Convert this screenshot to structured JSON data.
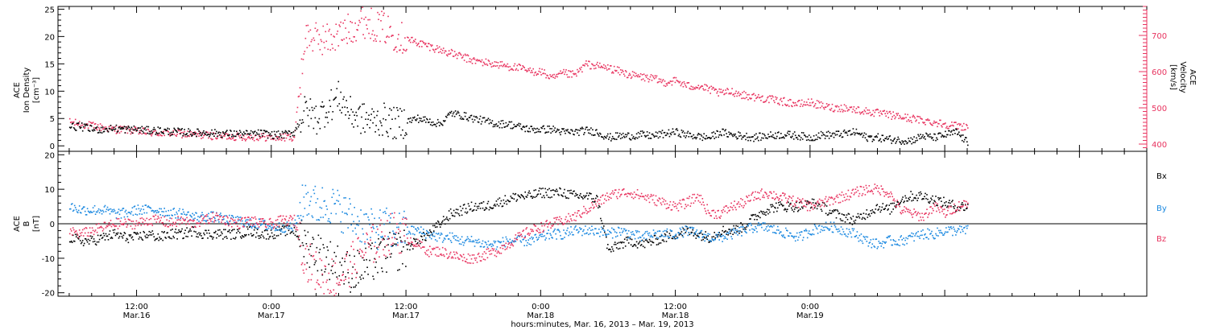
{
  "chart_data": [
    {
      "type": "scatter",
      "panel": "ion-density-velocity",
      "ylabel_left": [
        "ACE",
        "Ion Density",
        "[cm⁻³]"
      ],
      "ylabel_right": [
        "ACE",
        "Velocity",
        "[km/s]"
      ],
      "ylim_left": [
        -1,
        25.5
      ],
      "yticks_left": [
        0,
        5,
        10,
        15,
        20,
        25
      ],
      "ylim_right": [
        380,
        780
      ],
      "yticks_right": [
        400,
        500,
        600,
        700
      ],
      "colors": {
        "density": "#000000",
        "velocity": "#e8335f"
      },
      "series": [
        {
          "key": "density",
          "axis": "left",
          "color": "#000000",
          "x": [
            0,
            1,
            2,
            3,
            4,
            5,
            6,
            7,
            8,
            9,
            10,
            11,
            12,
            13,
            14,
            15,
            16,
            17,
            18,
            19,
            20,
            21,
            22,
            23,
            24,
            25,
            26,
            27,
            28,
            29,
            30,
            31,
            32,
            33,
            34,
            35,
            36,
            37,
            38,
            39,
            40,
            41,
            42,
            43,
            44,
            45,
            46,
            47,
            48,
            49,
            50,
            51,
            52,
            53,
            54,
            55,
            56,
            57,
            58,
            59,
            60,
            61,
            62,
            63,
            64,
            65,
            66,
            67,
            68,
            69,
            70,
            71,
            72,
            73,
            74,
            75,
            76,
            77,
            78,
            79,
            80
          ],
          "y": [
            3.5,
            3.5,
            3.0,
            3.0,
            3.2,
            3.0,
            3.0,
            2.8,
            2.8,
            2.6,
            2.5,
            2.4,
            2.4,
            2.3,
            2.2,
            2.2,
            2.1,
            2.3,
            2.0,
            2.0,
            2.5,
            6.5,
            5.0,
            7.0,
            9.0,
            6.0,
            5.0,
            4.5,
            4.8,
            4.0,
            4.5,
            5.0,
            4.5,
            4.0,
            6.0,
            5.5,
            5.0,
            4.5,
            4.0,
            4.0,
            3.5,
            3.0,
            3.0,
            3.0,
            2.5,
            2.5,
            2.8,
            2.5,
            1.5,
            1.8,
            1.8,
            2.0,
            1.8,
            2.2,
            2.5,
            2.0,
            1.7,
            1.5,
            2.5,
            2.0,
            1.8,
            1.5,
            1.8,
            2.0,
            2.0,
            1.8,
            1.5,
            2.0,
            2.0,
            2.2,
            2.5,
            1.5,
            1.5,
            1.2,
            1.0,
            1.0,
            1.8,
            1.5,
            2.0,
            2.5,
            0.5
          ]
        },
        {
          "key": "velocity",
          "axis": "right",
          "color": "#e8335f",
          "x": [
            0,
            1,
            2,
            3,
            4,
            5,
            6,
            7,
            8,
            9,
            10,
            11,
            12,
            13,
            14,
            15,
            16,
            17,
            18,
            19,
            20,
            21,
            22,
            23,
            24,
            25,
            26,
            27,
            28,
            29,
            30,
            31,
            32,
            33,
            34,
            35,
            36,
            37,
            38,
            39,
            40,
            41,
            42,
            43,
            44,
            45,
            46,
            47,
            48,
            49,
            50,
            51,
            52,
            53,
            54,
            55,
            56,
            57,
            58,
            59,
            60,
            61,
            62,
            63,
            64,
            65,
            66,
            67,
            68,
            69,
            70,
            71,
            72,
            73,
            74,
            75,
            76,
            77,
            78,
            79,
            80
          ],
          "y": [
            460,
            455,
            450,
            445,
            440,
            440,
            435,
            432,
            430,
            430,
            428,
            425,
            425,
            422,
            422,
            420,
            420,
            420,
            418,
            418,
            420,
            700,
            690,
            690,
            700,
            720,
            740,
            730,
            720,
            700,
            690,
            680,
            670,
            660,
            650,
            640,
            630,
            625,
            620,
            615,
            610,
            600,
            600,
            580,
            595,
            590,
            620,
            615,
            610,
            600,
            590,
            585,
            580,
            570,
            575,
            560,
            560,
            550,
            540,
            545,
            535,
            530,
            525,
            520,
            515,
            510,
            515,
            505,
            500,
            500,
            495,
            490,
            485,
            480,
            475,
            470,
            465,
            460,
            455,
            450,
            448
          ]
        }
      ]
    },
    {
      "type": "scatter",
      "panel": "magnetic-field",
      "ylabel": [
        "ACE",
        "B",
        "[nT]"
      ],
      "ylim": [
        -21,
        21
      ],
      "yticks": [
        -20,
        -10,
        0,
        10,
        20
      ],
      "zero_line": true,
      "legend": [
        "Bx",
        "By",
        "Bz"
      ],
      "colors": {
        "Bx": "#000000",
        "By": "#1a88e0",
        "Bz": "#e8335f"
      },
      "series": [
        {
          "key": "Bx",
          "color": "#000000",
          "x": [
            0,
            1,
            2,
            3,
            4,
            5,
            6,
            7,
            8,
            9,
            10,
            11,
            12,
            13,
            14,
            15,
            16,
            17,
            18,
            19,
            20,
            21,
            22,
            23,
            24,
            25,
            26,
            27,
            28,
            29,
            30,
            31,
            32,
            33,
            34,
            35,
            36,
            37,
            38,
            39,
            40,
            41,
            42,
            43,
            44,
            45,
            46,
            47,
            48,
            49,
            50,
            51,
            52,
            53,
            54,
            55,
            56,
            57,
            58,
            59,
            60,
            61,
            62,
            63,
            64,
            65,
            66,
            67,
            68,
            69,
            70,
            71,
            72,
            73,
            74,
            75,
            76,
            77,
            78,
            79,
            80
          ],
          "y": [
            -4,
            -5,
            -5,
            -4,
            -3,
            -4,
            -4,
            -3,
            -4,
            -3,
            -3,
            -2,
            -3,
            -3,
            -3,
            -3,
            -2,
            -3,
            -3,
            -2,
            -2,
            -6,
            -8,
            -10,
            -12,
            -14,
            -13,
            -11,
            -9,
            -8,
            -7,
            -5,
            -3,
            0,
            3,
            4,
            5,
            5,
            6,
            7,
            8,
            8,
            9,
            9,
            9,
            8,
            8,
            7,
            -8,
            -6,
            -5,
            -6,
            -5,
            -4,
            -3,
            -2,
            -3,
            -4,
            -2,
            -2,
            -1,
            2,
            4,
            5,
            5,
            5,
            6,
            5,
            3,
            2,
            1,
            3,
            5,
            4,
            7,
            8,
            8,
            7,
            6,
            5,
            5
          ]
        },
        {
          "key": "By",
          "color": "#1a88e0",
          "x": [
            0,
            1,
            2,
            3,
            4,
            5,
            6,
            7,
            8,
            9,
            10,
            11,
            12,
            13,
            14,
            15,
            16,
            17,
            18,
            19,
            20,
            21,
            22,
            23,
            24,
            25,
            26,
            27,
            28,
            29,
            30,
            31,
            32,
            33,
            34,
            35,
            36,
            37,
            38,
            39,
            40,
            41,
            42,
            43,
            44,
            45,
            46,
            47,
            48,
            49,
            50,
            51,
            52,
            53,
            54,
            55,
            56,
            57,
            58,
            59,
            60,
            61,
            62,
            63,
            64,
            65,
            66,
            67,
            68,
            69,
            70,
            71,
            72,
            73,
            74,
            75,
            76,
            77,
            78,
            79,
            80
          ],
          "y": [
            5,
            4,
            4,
            4,
            3,
            3,
            4,
            4,
            4,
            3,
            3,
            2,
            2,
            2,
            1,
            1,
            0,
            0,
            -1,
            -1,
            -1,
            8,
            5,
            6,
            4,
            2,
            0,
            -2,
            -1,
            -2,
            -2,
            -2,
            -3,
            -4,
            -4,
            -5,
            -5,
            -6,
            -6,
            -5,
            -5,
            -5,
            -4,
            -3,
            -3,
            -2,
            -2,
            -2,
            -3,
            -2,
            -3,
            -4,
            -3,
            -3,
            -3,
            -2,
            -3,
            -4,
            -4,
            -3,
            -2,
            -1,
            -1,
            -2,
            -3,
            -4,
            -2,
            -1,
            -1,
            -2,
            -3,
            -5,
            -6,
            -5,
            -5,
            -4,
            -3,
            -3,
            -2,
            -2,
            -2
          ]
        },
        {
          "key": "Bz",
          "color": "#e8335f",
          "x": [
            0,
            1,
            2,
            3,
            4,
            5,
            6,
            7,
            8,
            9,
            10,
            11,
            12,
            13,
            14,
            15,
            16,
            17,
            18,
            19,
            20,
            21,
            22,
            23,
            24,
            25,
            26,
            27,
            28,
            29,
            30,
            31,
            32,
            33,
            34,
            35,
            36,
            37,
            38,
            39,
            40,
            41,
            42,
            43,
            44,
            45,
            46,
            47,
            48,
            49,
            50,
            51,
            52,
            53,
            54,
            55,
            56,
            57,
            58,
            59,
            60,
            61,
            62,
            63,
            64,
            65,
            66,
            67,
            68,
            69,
            70,
            71,
            72,
            73,
            74,
            75,
            76,
            77,
            78,
            79,
            80
          ],
          "y": [
            -2,
            -3,
            -2,
            -1,
            0,
            0,
            0,
            1,
            1,
            0,
            1,
            0,
            1,
            2,
            1,
            0,
            1,
            0,
            0,
            1,
            1,
            -10,
            -14,
            -15,
            -16,
            -12,
            -8,
            -6,
            -4,
            -2,
            -4,
            -6,
            -8,
            -8,
            -9,
            -10,
            -10,
            -9,
            -8,
            -6,
            -4,
            -2,
            -1,
            0,
            1,
            2,
            4,
            6,
            8,
            9,
            9,
            8,
            7,
            6,
            5,
            6,
            8,
            3,
            3,
            5,
            6,
            8,
            9,
            8,
            7,
            6,
            5,
            6,
            7,
            8,
            9,
            10,
            10,
            9,
            4,
            3,
            2,
            5,
            3,
            5,
            6
          ]
        }
      ]
    }
  ],
  "x_axis": {
    "range": [
      -1,
      96
    ],
    "data_end": 80,
    "major_ticks": [
      {
        "x": 6,
        "time": "12:00",
        "date": "Mar.16"
      },
      {
        "x": 18,
        "time": "0:00",
        "date": "Mar.17"
      },
      {
        "x": 30,
        "time": "12:00",
        "date": "Mar.17"
      },
      {
        "x": 42,
        "time": "0:00",
        "date": "Mar.18"
      },
      {
        "x": 54,
        "time": "12:00",
        "date": "Mar.18"
      },
      {
        "x": 66,
        "time": "0:00",
        "date": "Mar.19"
      }
    ],
    "xlabel": "hours:minutes, Mar. 16, 2013 – Mar. 19, 2013"
  }
}
